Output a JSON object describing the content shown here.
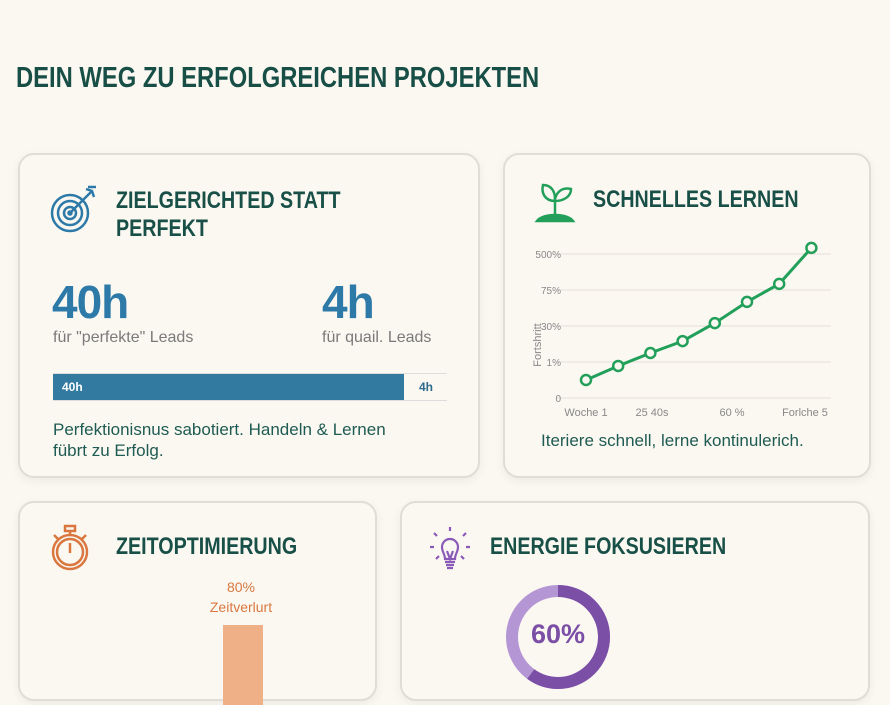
{
  "title": "DEIN WEG ZU ERFOLGREICHEN PROJEKTEN",
  "cards": {
    "target": {
      "icon": "target-arrow-icon",
      "title1": "ZIELGERICHTED STATT",
      "title2": "PERFEKT",
      "stat1": {
        "value": "40h",
        "label": "für \"perfekte\" Leads"
      },
      "stat2": {
        "value": "4h",
        "label": "für quail. Leads"
      },
      "bar": {
        "left_label": "40h",
        "right_label": "4h",
        "fraction": 0.89,
        "color": "#337aa0"
      },
      "text": "Perfektionisnus sabotiert. Handeln & Lernen",
      "text2": "fübrt zu Erfolg."
    },
    "learning": {
      "icon": "sprout-icon",
      "title": "SCHNELLES LERNEN",
      "caption": "Iteriere schnell, lerne kontinulerich."
    },
    "time": {
      "icon": "stopwatch-icon",
      "title": "ZEITOPTIMIERUNG",
      "bar_value": "80%",
      "bar_label": "Zeitverlurt",
      "color": "#efb088"
    },
    "energy": {
      "icon": "lightbulb-icon",
      "title": "ENERGIE FOKSUSIEREN",
      "donut_value": "60%",
      "percent": 60,
      "color": "#7b4fa6"
    }
  },
  "chart_data": {
    "type": "line",
    "ylabel": "Fortshritt",
    "yticks": [
      "0",
      "1%",
      "30%",
      "75%",
      "500%"
    ],
    "xticks": [
      "Woche 1",
      "25 40s",
      "60 %",
      "Forlche 5"
    ],
    "y_tick_position": [
      0.5,
      0.89,
      1.25,
      1.58,
      2.08,
      2.67,
      3.17,
      4.17
    ],
    "color": "#22a05a",
    "grid": true
  }
}
